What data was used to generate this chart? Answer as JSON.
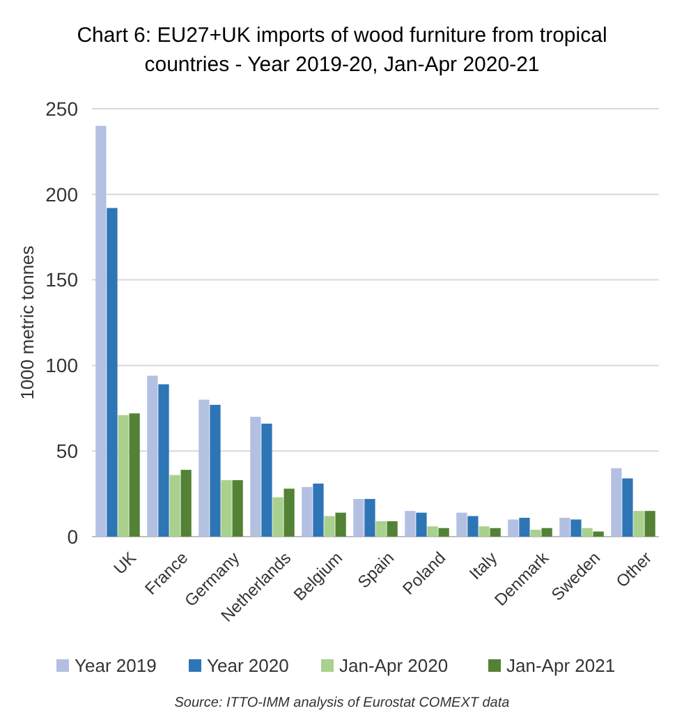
{
  "chart_data": {
    "type": "bar",
    "title": "Chart 6: EU27+UK imports of wood furniture from tropical countries - Year 2019-20, Jan-Apr 2020-21",
    "ylabel": "1000 metric tonnes",
    "categories": [
      "UK",
      "France",
      "Germany",
      "Netherlands",
      "Belgium",
      "Spain",
      "Poland",
      "Italy",
      "Denmark",
      "Sweden",
      "Other"
    ],
    "series": [
      {
        "name": "Year 2019",
        "color": "#b4c0e2",
        "values": [
          240,
          94,
          80,
          70,
          29,
          22,
          15,
          14,
          10,
          11,
          40
        ]
      },
      {
        "name": "Year 2020",
        "color": "#2e75b6",
        "values": [
          192,
          89,
          77,
          66,
          31,
          22,
          14,
          12,
          11,
          10,
          34
        ]
      },
      {
        "name": "Jan-Apr 2020",
        "color": "#a9d18e",
        "values": [
          71,
          36,
          33,
          23,
          12,
          9,
          6,
          6,
          4,
          5,
          15
        ]
      },
      {
        "name": "Jan-Apr 2021",
        "color": "#548235",
        "values": [
          72,
          39,
          33,
          28,
          14,
          9,
          5,
          5,
          5,
          3,
          15
        ]
      }
    ],
    "ylim": [
      0,
      250
    ],
    "yticks": [
      0,
      50,
      100,
      150,
      200,
      250
    ],
    "grid": "y",
    "legend": "bottom",
    "annotations": [
      "Source: ITTO-IMM analysis of Eurostat COMEXT data"
    ]
  }
}
